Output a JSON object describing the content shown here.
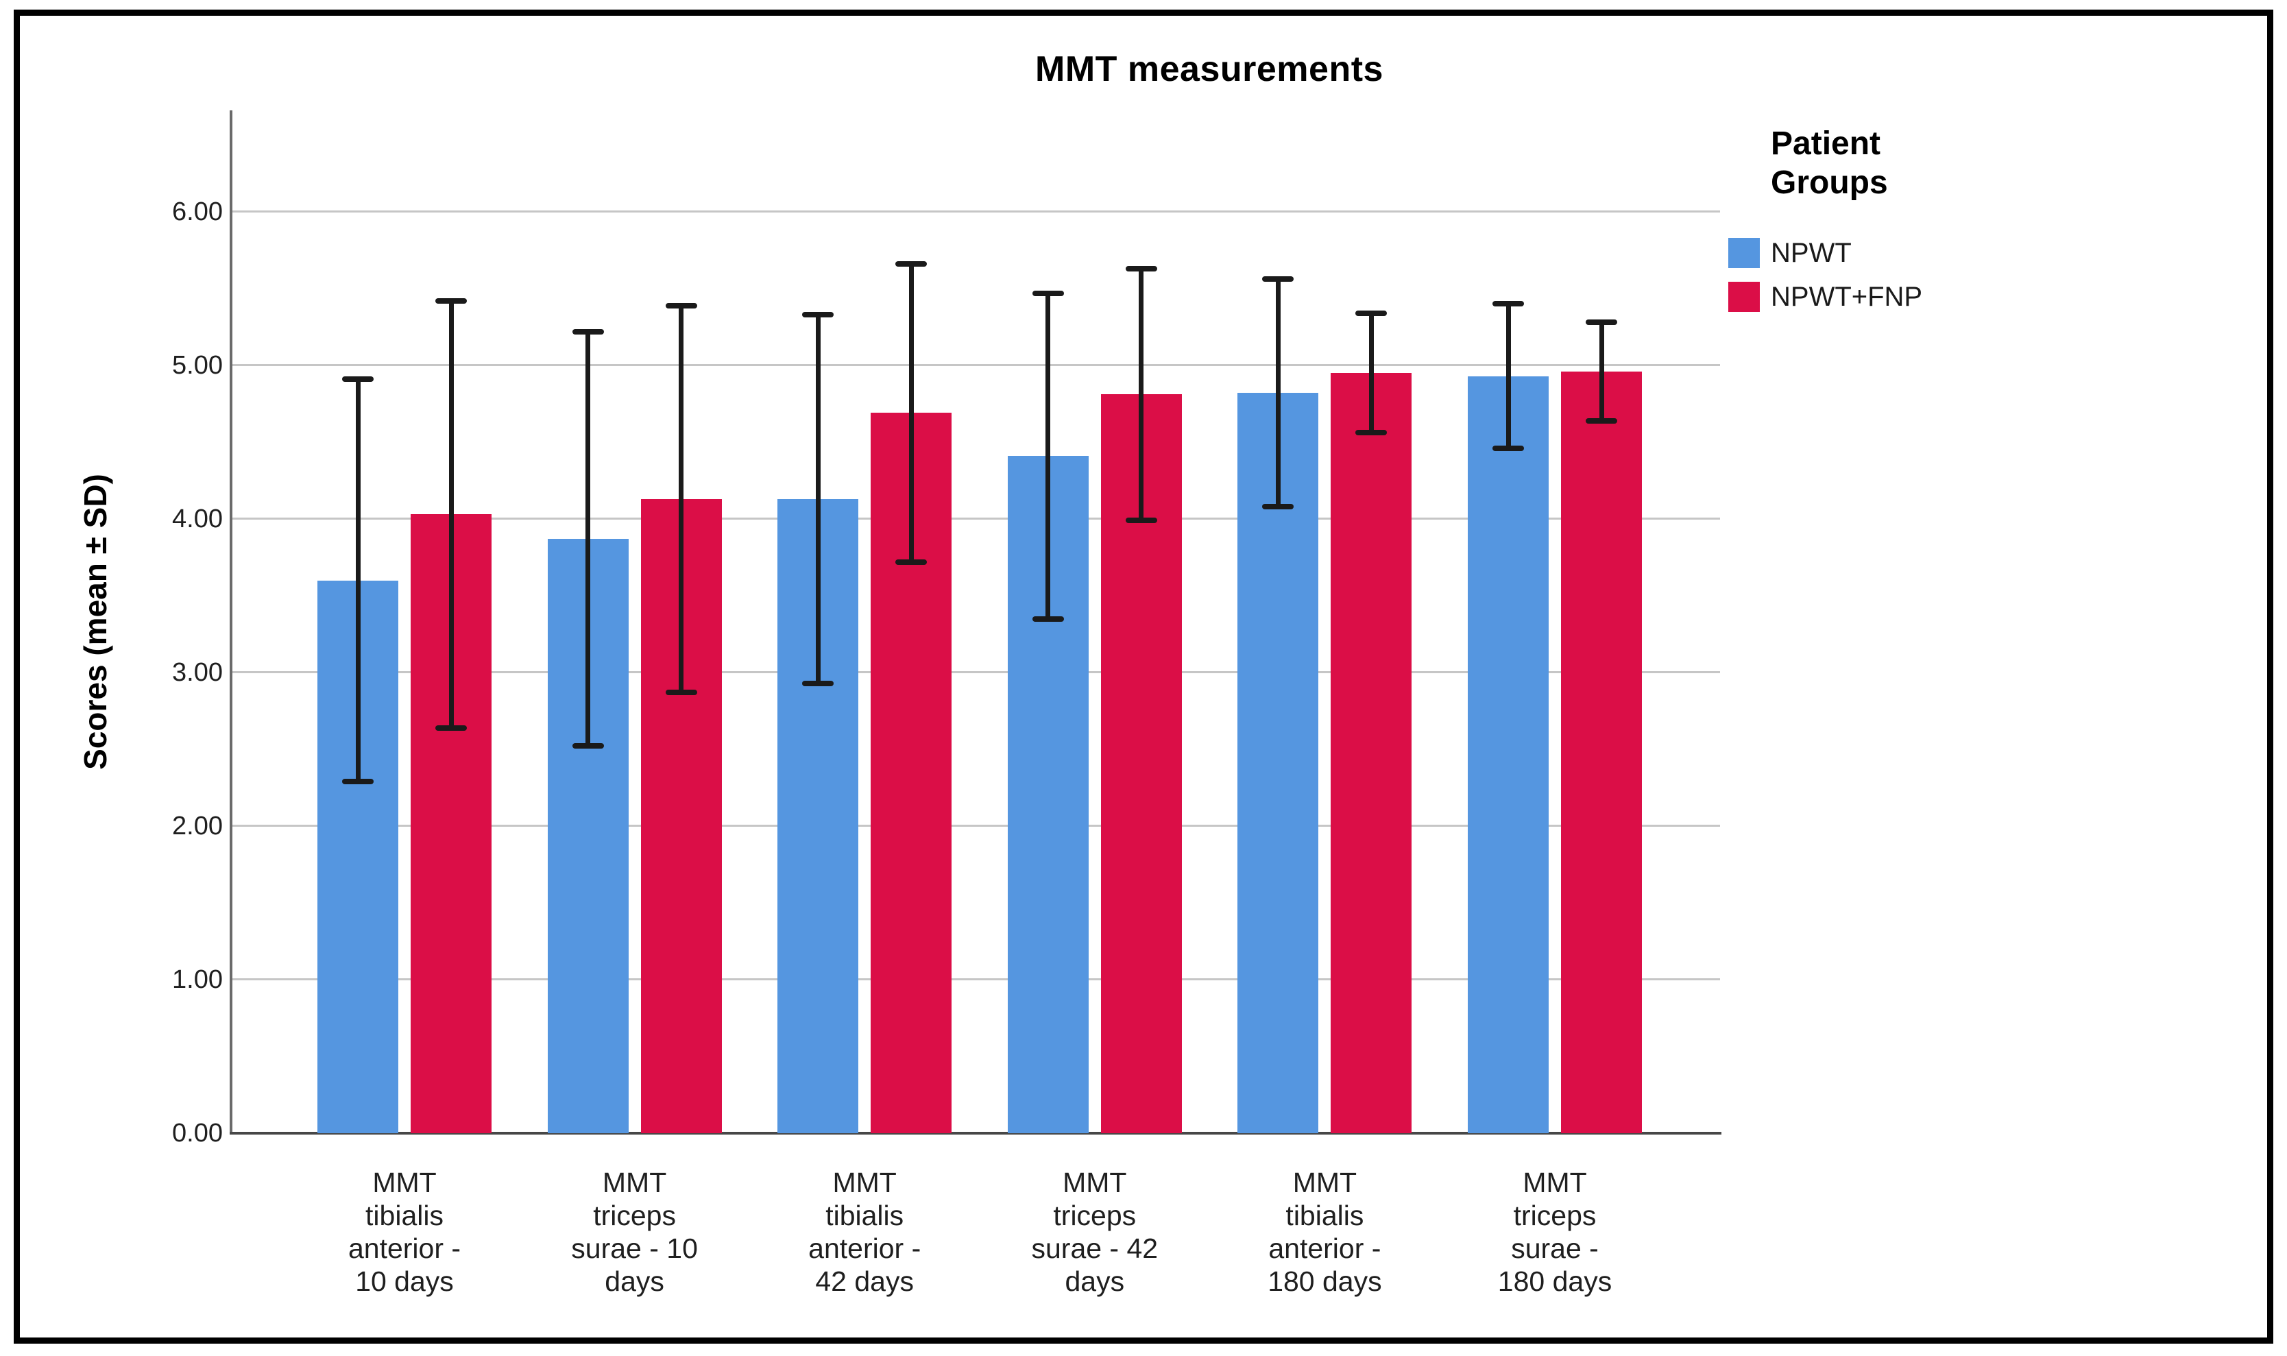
{
  "title": "MMT measurements",
  "y_axis": {
    "label": "Scores (mean ± SD)",
    "tick_labels": [
      "0.00",
      "1.00",
      "2.00",
      "3.00",
      "4.00",
      "5.00",
      "6.00"
    ]
  },
  "legend": {
    "title_lines": [
      "Patient",
      "Groups"
    ],
    "items": [
      {
        "label": "NPWT",
        "color": "#5596E0"
      },
      {
        "label": "NPWT+FNP",
        "color": "#DB0E47"
      }
    ]
  },
  "colors": {
    "npwt_blue": "#5596E0",
    "npwt_fnp_red": "#DB0E47",
    "gridline": "#C6C6C6",
    "y_axis_line": "#6A6A6A",
    "x_axis_line": "#474747",
    "error_bar": "#1A1A1A",
    "frame_border": "#000000"
  },
  "chart_data": {
    "type": "bar",
    "title": "MMT measurements",
    "xlabel": "",
    "ylabel": "Scores (mean ± SD)",
    "ylim": [
      0,
      6.66
    ],
    "yticks": [
      0,
      1,
      2,
      3,
      4,
      5,
      6
    ],
    "grid": true,
    "legend_title": "Patient Groups",
    "legend_position": "right",
    "error_bars": "± SD, symmetric with caps",
    "categories": [
      "MMT tibialis anterior - 10 days",
      "MMT triceps surae - 10 days",
      "MMT tibialis anterior - 42 days",
      "MMT triceps surae - 42 days",
      "MMT tibialis anterior - 180 days",
      "MMT triceps surae - 180 days"
    ],
    "category_label_lines": [
      [
        "MMT",
        "tibialis",
        "anterior -",
        "10 days"
      ],
      [
        "MMT",
        "triceps",
        "surae - 10",
        "days"
      ],
      [
        "MMT",
        "tibialis",
        "anterior -",
        "42 days"
      ],
      [
        "MMT",
        "triceps",
        "surae - 42",
        "days"
      ],
      [
        "MMT",
        "tibialis",
        "anterior -",
        "180 days"
      ],
      [
        "MMT",
        "triceps",
        "surae -",
        "180 days"
      ]
    ],
    "series": [
      {
        "name": "NPWT",
        "color": "#5596E0",
        "means": [
          3.6,
          3.87,
          4.13,
          4.41,
          4.82,
          4.93
        ],
        "sd": [
          1.31,
          1.35,
          1.2,
          1.06,
          0.74,
          0.47
        ]
      },
      {
        "name": "NPWT+FNP",
        "color": "#DB0E47",
        "means": [
          4.03,
          4.13,
          4.69,
          4.81,
          4.95,
          4.96
        ],
        "sd": [
          1.39,
          1.26,
          0.97,
          0.82,
          0.39,
          0.32
        ]
      }
    ]
  }
}
